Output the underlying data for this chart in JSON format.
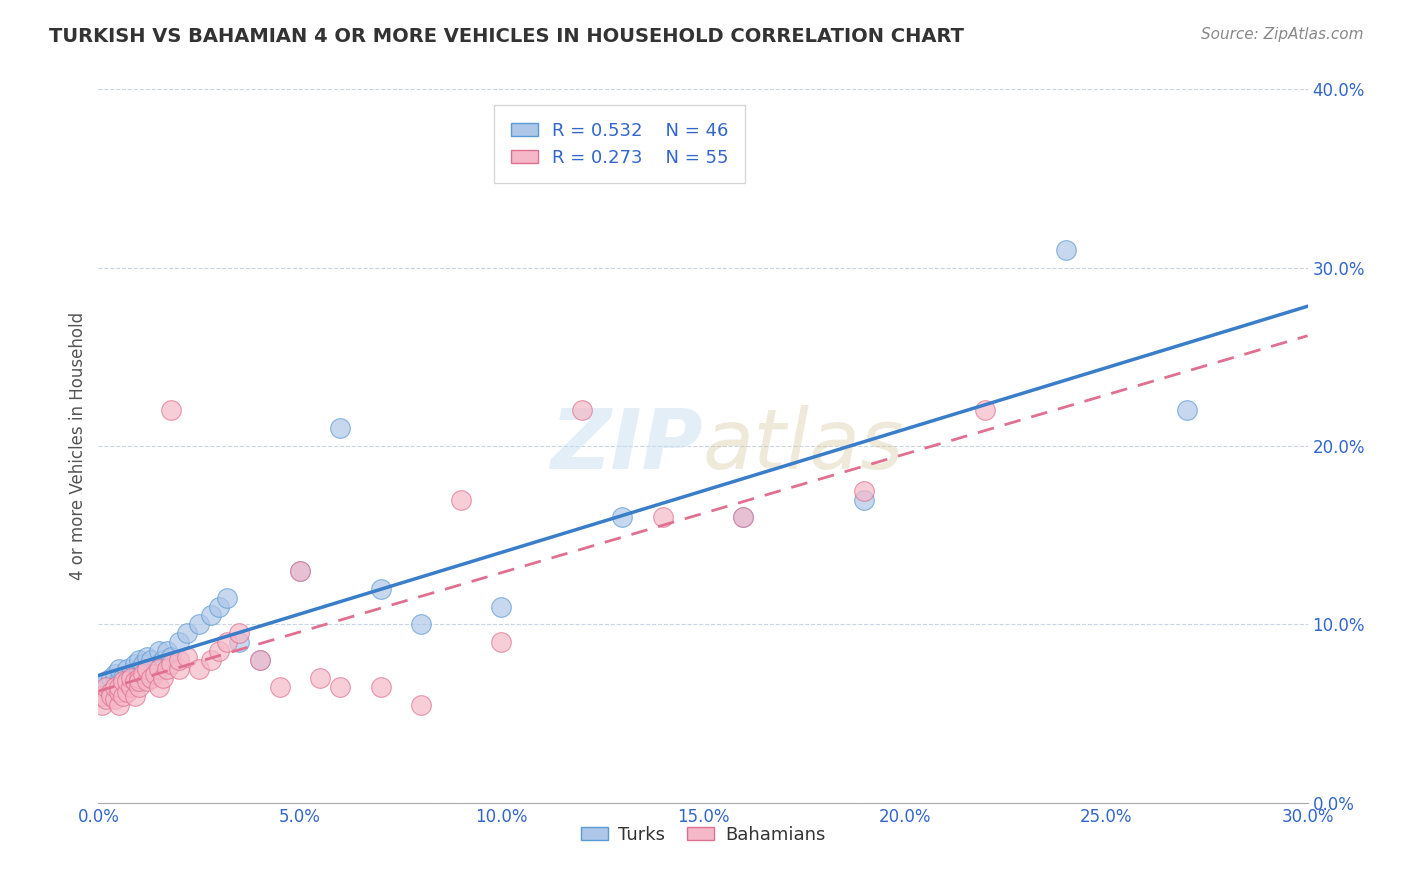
{
  "title": "TURKISH VS BAHAMIAN 4 OR MORE VEHICLES IN HOUSEHOLD CORRELATION CHART",
  "source": "Source: ZipAtlas.com",
  "xmin": 0.0,
  "xmax": 0.3,
  "ymin": 0.0,
  "ymax": 0.4,
  "ylabel": "4 or more Vehicles in Household",
  "legend_r1": "R = 0.532",
  "legend_n1": "N = 46",
  "legend_r2": "R = 0.273",
  "legend_n2": "N = 55",
  "legend_label1": "Turks",
  "legend_label2": "Bahamians",
  "color_turks": "#aec6e8",
  "color_bahamians": "#f5b8c8",
  "color_turks_edge": "#5b9bd5",
  "color_bahamians_edge": "#e07090",
  "color_turks_line": "#3a7dc9",
  "color_bahamians_line": "#e07090",
  "watermark_color": "#c8dff0",
  "turks_x": [
    0.001,
    0.002,
    0.003,
    0.004,
    0.005,
    0.005,
    0.006,
    0.006,
    0.007,
    0.007,
    0.008,
    0.008,
    0.009,
    0.009,
    0.01,
    0.01,
    0.01,
    0.011,
    0.011,
    0.012,
    0.012,
    0.013,
    0.014,
    0.015,
    0.015,
    0.016,
    0.017,
    0.018,
    0.02,
    0.022,
    0.025,
    0.028,
    0.03,
    0.032,
    0.035,
    0.04,
    0.05,
    0.06,
    0.07,
    0.08,
    0.1,
    0.13,
    0.16,
    0.19,
    0.24,
    0.27
  ],
  "turks_y": [
    0.065,
    0.068,
    0.07,
    0.072,
    0.068,
    0.075,
    0.065,
    0.07,
    0.068,
    0.075,
    0.07,
    0.072,
    0.068,
    0.078,
    0.072,
    0.075,
    0.08,
    0.07,
    0.078,
    0.075,
    0.082,
    0.08,
    0.075,
    0.078,
    0.085,
    0.08,
    0.085,
    0.082,
    0.09,
    0.095,
    0.1,
    0.105,
    0.11,
    0.115,
    0.09,
    0.08,
    0.13,
    0.21,
    0.12,
    0.1,
    0.11,
    0.16,
    0.16,
    0.17,
    0.31,
    0.22
  ],
  "bahamians_x": [
    0.001,
    0.001,
    0.002,
    0.002,
    0.003,
    0.003,
    0.004,
    0.004,
    0.005,
    0.005,
    0.005,
    0.006,
    0.006,
    0.007,
    0.007,
    0.008,
    0.008,
    0.009,
    0.009,
    0.01,
    0.01,
    0.01,
    0.011,
    0.012,
    0.012,
    0.013,
    0.014,
    0.015,
    0.015,
    0.016,
    0.017,
    0.018,
    0.018,
    0.02,
    0.02,
    0.022,
    0.025,
    0.028,
    0.03,
    0.032,
    0.035,
    0.04,
    0.045,
    0.05,
    0.055,
    0.06,
    0.07,
    0.08,
    0.09,
    0.1,
    0.12,
    0.14,
    0.16,
    0.19,
    0.22
  ],
  "bahamians_y": [
    0.055,
    0.06,
    0.058,
    0.065,
    0.062,
    0.06,
    0.058,
    0.065,
    0.055,
    0.062,
    0.065,
    0.06,
    0.068,
    0.062,
    0.068,
    0.065,
    0.07,
    0.06,
    0.068,
    0.065,
    0.07,
    0.068,
    0.072,
    0.068,
    0.075,
    0.07,
    0.072,
    0.065,
    0.075,
    0.07,
    0.075,
    0.22,
    0.078,
    0.075,
    0.08,
    0.082,
    0.075,
    0.08,
    0.085,
    0.09,
    0.095,
    0.08,
    0.065,
    0.13,
    0.07,
    0.065,
    0.065,
    0.055,
    0.17,
    0.09,
    0.22,
    0.16,
    0.16,
    0.175,
    0.22
  ]
}
